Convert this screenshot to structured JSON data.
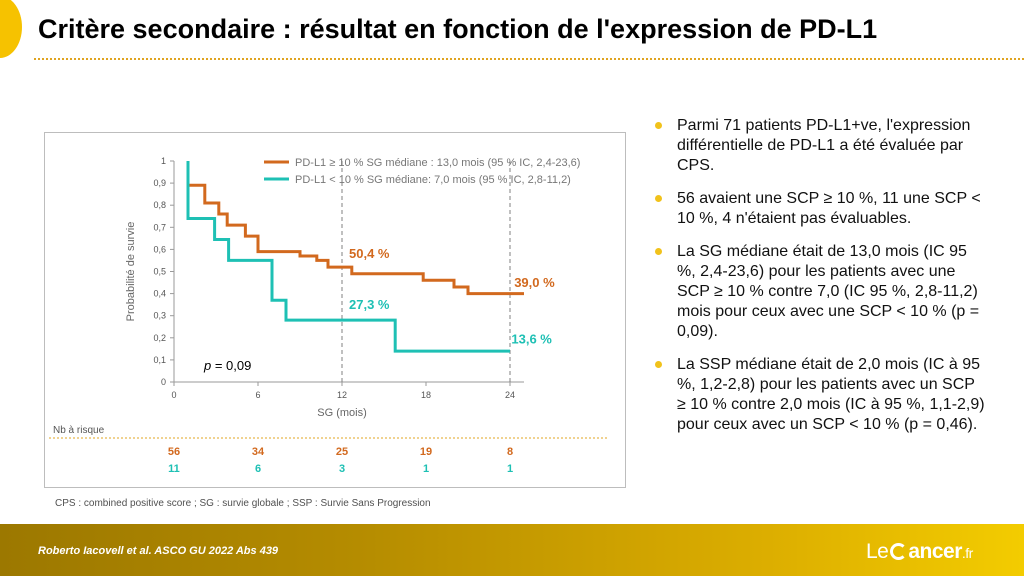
{
  "header": {
    "title": "Critère secondaire : résultat en fonction de l'expression de PD-L1"
  },
  "chart_data": {
    "type": "line",
    "xlabel": "SG (mois)",
    "ylabel": "Probabilité de survie",
    "xlim": [
      0,
      25
    ],
    "ylim": [
      0,
      1
    ],
    "x_ticks": [
      "0",
      "6",
      "12",
      "18",
      "24"
    ],
    "y_ticks": [
      "0",
      "0,1",
      "0,2",
      "0,3",
      "0,4",
      "0,5",
      "0,6",
      "0,7",
      "0,8",
      "0,9",
      "1"
    ],
    "reference_lines_x": [
      12,
      24
    ],
    "series": [
      {
        "name": "PD-L1 ≥ 10 % SG médiane : 13,0 mois (95 % IC, 2,4-23,6)",
        "color": "#d2691e",
        "step_points": [
          [
            1,
            1
          ],
          [
            1,
            0.89
          ],
          [
            2.2,
            0.89
          ],
          [
            2.2,
            0.81
          ],
          [
            3.2,
            0.81
          ],
          [
            3.2,
            0.76
          ],
          [
            3.8,
            0.76
          ],
          [
            3.8,
            0.71
          ],
          [
            5.1,
            0.71
          ],
          [
            5.1,
            0.66
          ],
          [
            6,
            0.66
          ],
          [
            6,
            0.59
          ],
          [
            9,
            0.59
          ],
          [
            9,
            0.57
          ],
          [
            10.2,
            0.57
          ],
          [
            10.2,
            0.55
          ],
          [
            11,
            0.55
          ],
          [
            11,
            0.52
          ],
          [
            12.7,
            0.52
          ],
          [
            12.7,
            0.49
          ],
          [
            17.8,
            0.49
          ],
          [
            17.8,
            0.46
          ],
          [
            20,
            0.46
          ],
          [
            20,
            0.43
          ],
          [
            21,
            0.43
          ],
          [
            21,
            0.4
          ],
          [
            25,
            0.4
          ]
        ]
      },
      {
        "name": "PD-L1 < 10 % SG médiane: 7,0 mois (95 % IC, 2,8-11,2)",
        "color": "#1ec0b4",
        "step_points": [
          [
            1,
            1
          ],
          [
            1,
            0.74
          ],
          [
            2.9,
            0.74
          ],
          [
            2.9,
            0.645
          ],
          [
            3.9,
            0.645
          ],
          [
            3.9,
            0.55
          ],
          [
            7,
            0.55
          ],
          [
            7,
            0.37
          ],
          [
            8,
            0.37
          ],
          [
            8,
            0.28
          ],
          [
            15.8,
            0.28
          ],
          [
            15.8,
            0.14
          ],
          [
            24,
            0.14
          ]
        ]
      }
    ],
    "annotations": [
      {
        "text": "50,4 %",
        "x": 12.5,
        "y": 0.56,
        "color": "#d2691e"
      },
      {
        "text": "39,0 %",
        "x": 24.3,
        "y": 0.43,
        "color": "#d2691e"
      },
      {
        "text": "27,3 %",
        "x": 12.5,
        "y": 0.33,
        "color": "#1ec0b4"
      },
      {
        "text": "13,6 %",
        "x": 24.1,
        "y": 0.175,
        "color": "#1ec0b4"
      }
    ],
    "p_value": {
      "label": "p",
      "value": "= 0,09"
    },
    "risk_table": {
      "label": "Nb à risque",
      "at_months": [
        0,
        6,
        12,
        18,
        24
      ],
      "rows": [
        {
          "color": "#d2691e",
          "values": [
            "56",
            "34",
            "25",
            "19",
            "8"
          ]
        },
        {
          "color": "#1ec0b4",
          "values": [
            "11",
            "6",
            "3",
            "1",
            "1"
          ]
        }
      ]
    }
  },
  "footnote": "CPS : combined positive score ; SG : survie globale ; SSP : Survie Sans Progression",
  "bullets": [
    "Parmi 71 patients PD-L1+ve, l'expression différentielle de PD-L1 a été évaluée par CPS.",
    "56 avaient une SCP ≥ 10 %, 11 une SCP < 10 %, 4 n'étaient pas évaluables.",
    "La SG médiane était de 13,0 mois (IC 95 %, 2,4-23,6) pour les patients avec une SCP ≥ 10 % contre 7,0 (IC 95 %, 2,8-11,2) mois pour ceux avec une SCP < 10 % (p = 0,09).",
    "La SSP médiane était de 2,0 mois (IC à 95 %, 1,2-2,8) pour les patients avec un SCP ≥ 10 % contre 2,0 mois (IC à 95 %, 1,1-2,9) pour ceux avec un SCP < 10 % (p = 0,46)."
  ],
  "footer": {
    "reference": "Roberto Iacovell et al. ASCO GU 2022 Abs 439",
    "logo_le": "Le",
    "logo_ancer": "ancer",
    "logo_fr": ".fr"
  },
  "colors": {
    "accent": "#f1c21b",
    "orange_series": "#d2691e",
    "teal_series": "#1ec0b4"
  }
}
